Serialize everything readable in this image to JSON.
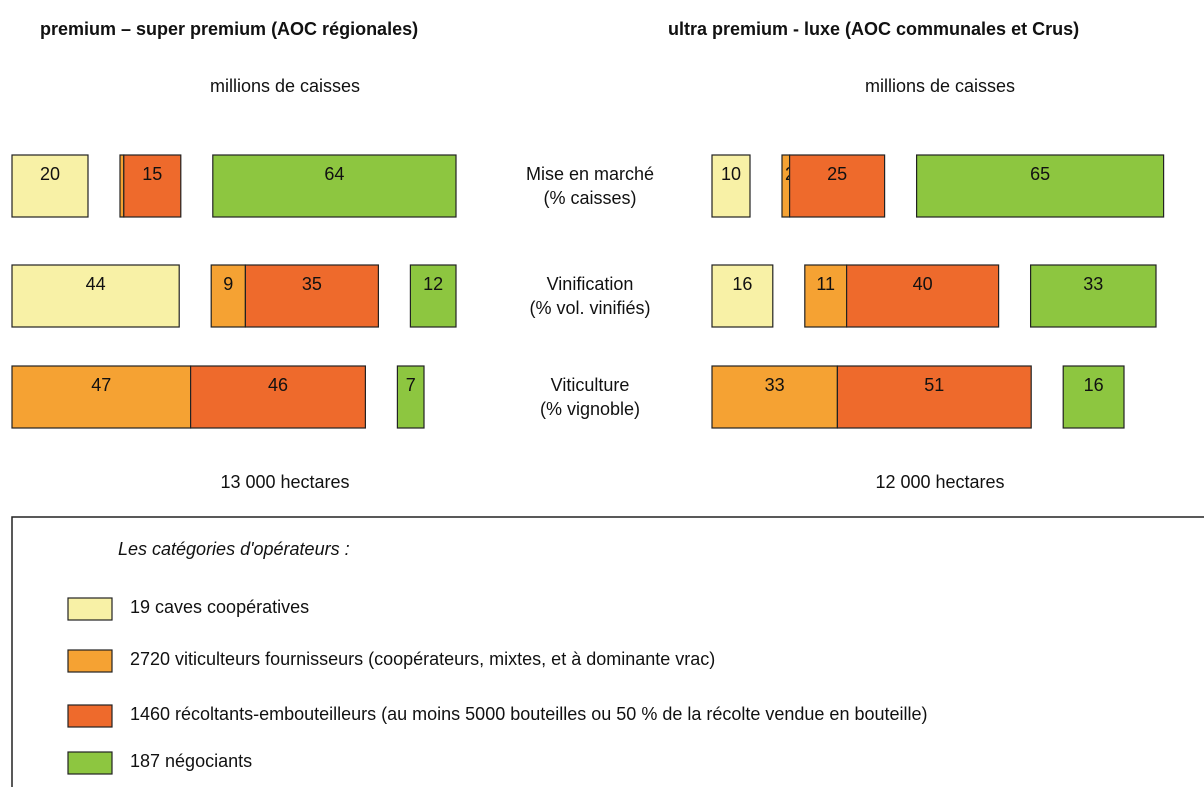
{
  "rows": [
    {
      "label": "Mise en marché",
      "sublabel": "(% caisses)"
    },
    {
      "label": "Vinification",
      "sublabel": "(% vol. vinifiés)"
    },
    {
      "label": "Viticulture",
      "sublabel": "(% vignoble)"
    }
  ],
  "chart_data": [
    {
      "type": "bar",
      "title": "premium – super premium (AOC régionales)",
      "subtitle": "millions de caisses",
      "footnote": "13 000 hectares",
      "series": [
        {
          "color": "#f8f1a6",
          "values": [
            20,
            44,
            null
          ]
        },
        {
          "color": "#f5a233",
          "values": [
            1,
            9,
            47
          ]
        },
        {
          "color": "#ee6a2c",
          "values": [
            15,
            35,
            46
          ]
        },
        {
          "color": "#8dc640",
          "values": [
            64,
            12,
            7
          ]
        }
      ]
    },
    {
      "type": "bar",
      "title": "ultra premium - luxe (AOC communales et Crus)",
      "subtitle": "millions de caisses",
      "footnote": "12 000 hectares",
      "series": [
        {
          "color": "#f8f1a6",
          "values": [
            10,
            16,
            null
          ]
        },
        {
          "color": "#f5a233",
          "values": [
            2,
            11,
            33
          ]
        },
        {
          "color": "#ee6a2c",
          "values": [
            25,
            40,
            51
          ]
        },
        {
          "color": "#8dc640",
          "values": [
            65,
            33,
            16
          ]
        }
      ]
    }
  ],
  "legend": {
    "title": "Les catégories d'opérateurs :",
    "items": [
      "19 caves coopératives",
      "2720 viticulteurs fournisseurs (coopérateurs, mixtes, et à dominante vrac)",
      "1460 récoltants-embouteilleurs (au moins 5000 bouteilles ou 50 % de la récolte vendue en bouteille)",
      "187 négociants"
    ]
  }
}
